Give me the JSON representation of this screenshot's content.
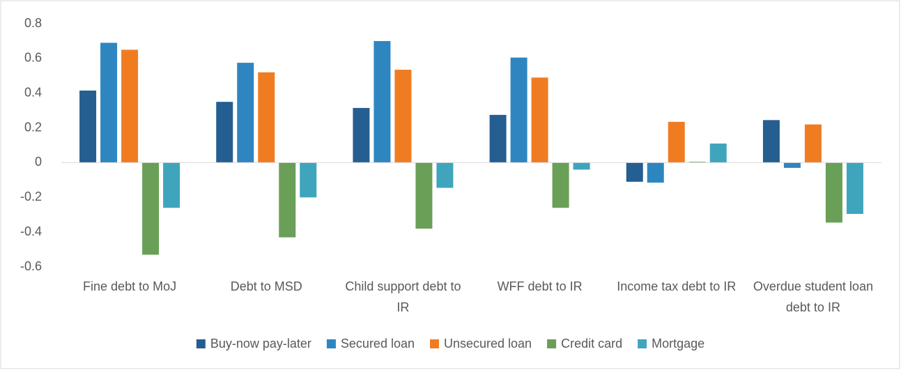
{
  "chart_data": {
    "type": "bar",
    "categories": [
      "Fine debt to MoJ",
      "Debt to MSD",
      "Child support debt to IR",
      "WFF debt to IR",
      "Income tax debt to IR",
      "Overdue student loan debt to IR"
    ],
    "series": [
      {
        "name": "Buy-now pay-later",
        "color": "#255e91",
        "values": [
          0.415,
          0.35,
          0.315,
          0.275,
          -0.11,
          0.245
        ]
      },
      {
        "name": "Secured loan",
        "color": "#2e86c1",
        "values": [
          0.69,
          0.575,
          0.7,
          0.605,
          -0.115,
          -0.03
        ]
      },
      {
        "name": "Unsecured loan",
        "color": "#f07c22",
        "values": [
          0.65,
          0.52,
          0.535,
          0.49,
          0.235,
          0.22
        ]
      },
      {
        "name": "Credit card",
        "color": "#6a9f58",
        "values": [
          -0.53,
          -0.43,
          -0.38,
          -0.26,
          0.005,
          -0.345
        ]
      },
      {
        "name": "Mortgage",
        "color": "#3fa5bd",
        "values": [
          -0.26,
          -0.2,
          -0.145,
          -0.04,
          0.11,
          -0.295
        ]
      }
    ],
    "ylim": [
      -0.6,
      0.8
    ],
    "yticks": [
      -0.6,
      -0.4,
      -0.2,
      0,
      0.2,
      0.4,
      0.6,
      0.8
    ],
    "grid": false,
    "legend": "bottom"
  }
}
